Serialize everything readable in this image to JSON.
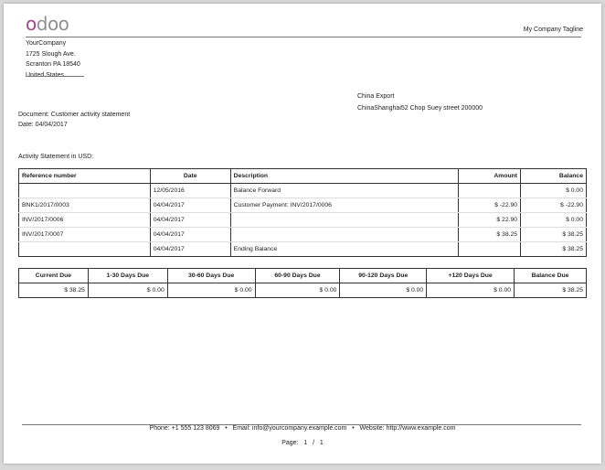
{
  "header": {
    "logo_text": "odoo",
    "tagline": "My Company Tagline",
    "company": {
      "name": "YourCompany",
      "street": "1725 Slough Ave.",
      "city": "Scranton PA 18540",
      "country": "United States"
    }
  },
  "customer": {
    "name": "China Export",
    "address": "ChinaShanghai52  Chop Suey street 200000"
  },
  "document": {
    "label": "Document: Customer activity statement",
    "date": "Date: 04/04/2017"
  },
  "statement_title": "Activity Statement in USD:",
  "activity": {
    "columns": [
      "Reference number",
      "Date",
      "Description",
      "Amount",
      "Balance"
    ],
    "rows": [
      [
        "",
        "12/05/2016",
        "Balance Forward",
        "",
        "$ 0.00"
      ],
      [
        "BNK1/2017/0003",
        "04/04/2017",
        "Customer Payment: INV/2017/0006",
        "$ -22.90",
        "$ -22.90"
      ],
      [
        "INV/2017/0006",
        "04/04/2017",
        "",
        "$ 22.90",
        "$ 0.00"
      ],
      [
        "INV/2017/0007",
        "04/04/2017",
        "",
        "$ 38.25",
        "$ 38.25"
      ],
      [
        "",
        "04/04/2017",
        "Ending Balance",
        "",
        "$ 38.25"
      ]
    ]
  },
  "aging": {
    "columns": [
      "Current Due",
      "1-30 Days Due",
      "30-60 Days Due",
      "60-90 Days Due",
      "90-120 Days Due",
      "+120 Days Due",
      "Balance Due"
    ],
    "values": [
      "$ 38.25",
      "$ 0.00",
      "$ 0.00",
      "$ 0.00",
      "$ 0.00",
      "$ 0.00",
      "$ 38.25"
    ]
  },
  "footer": {
    "contact": "Phone: +1 555 123 8069   •   Email: info@yourcompany.example.com   •   Website: http://www.example.com",
    "page_label": "Page:",
    "page": "1",
    "sep": "/",
    "total": "1"
  }
}
